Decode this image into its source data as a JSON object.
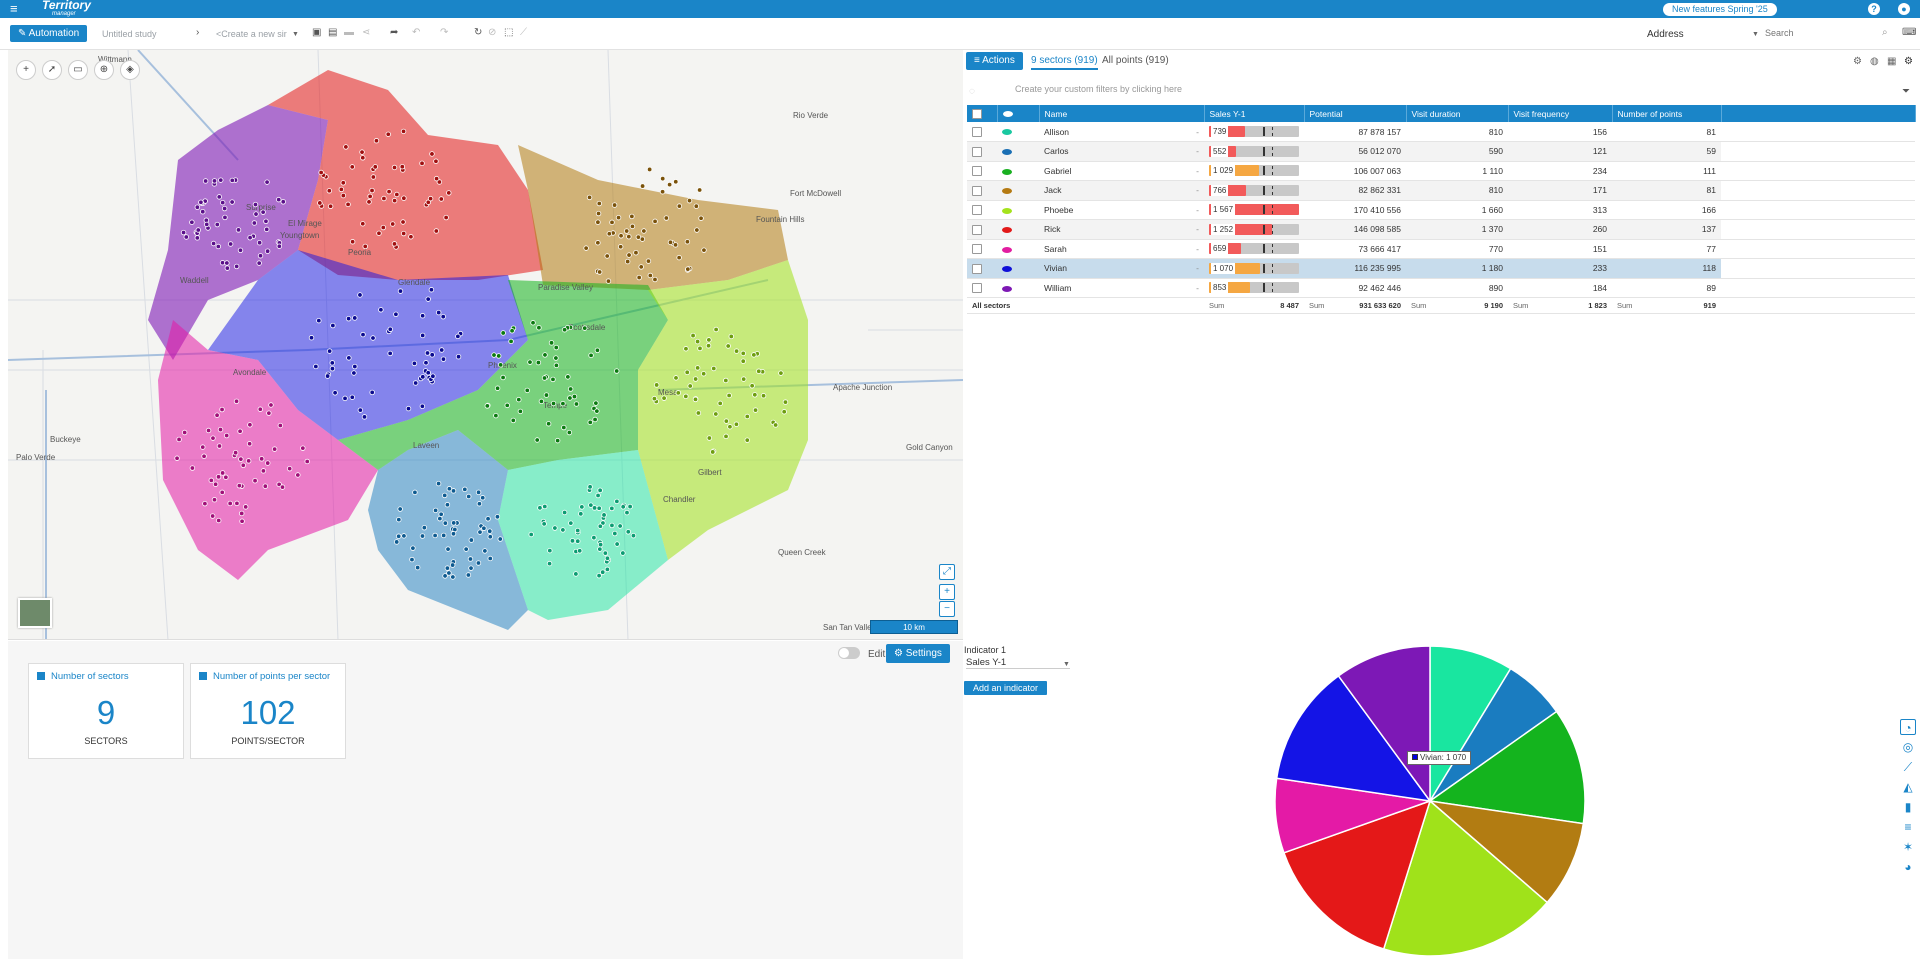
{
  "topbar": {
    "menu_icon": "hamburger-icon",
    "logo_line1": "Territory",
    "logo_line2": "manager",
    "new_features": "New features Spring '25",
    "help": "?",
    "user": "●"
  },
  "toolbar": {
    "automation": "Automation",
    "study": "Untitled study",
    "scenario": "<Create a new sir",
    "address_label": "Address",
    "search_placeholder": "Search"
  },
  "map": {
    "places": [
      "Wittmann",
      "Surprise",
      "El Mirage",
      "Youngtown",
      "Peoria",
      "Glendale",
      "Waddell",
      "Avondale",
      "Phoenix",
      "Buckeye",
      "Palo Verde",
      "Paradise Valley",
      "Scottsdale",
      "Tempe",
      "Mesa",
      "Gilbert",
      "Chandler",
      "Fort McDowell",
      "Fountain Hills",
      "Rio Verde",
      "Apache Junction",
      "Gold Canyon",
      "Queen Creek",
      "San Tan Valley",
      "Laveen"
    ],
    "scale": "10 km"
  },
  "panel": {
    "actions": "Actions",
    "tab_sectors": "9 sectors (919)",
    "tab_points": "All points (919)",
    "filter_hint": "Create your custom filters by clicking here"
  },
  "table": {
    "headers": [
      "Name",
      "Sales Y-1",
      "Potential",
      "Visit duration",
      "Visit frequency",
      "Number of points"
    ],
    "rows": [
      {
        "name": "Allison",
        "color": "#19c8a0",
        "sales": "739",
        "sales_fill": 0.4,
        "bar_color": "#f25a5a",
        "potential": "87 878 157",
        "duration": "810",
        "frequency": "156",
        "points": "81"
      },
      {
        "name": "Carlos",
        "color": "#1a6fb4",
        "sales": "552",
        "sales_fill": 0.3,
        "bar_color": "#f25a5a",
        "potential": "56 012 070",
        "duration": "590",
        "frequency": "121",
        "points": "59"
      },
      {
        "name": "Gabriel",
        "color": "#19b021",
        "sales": "1 029",
        "sales_fill": 0.55,
        "bar_color": "#f5a742",
        "potential": "106 007 063",
        "duration": "1 110",
        "frequency": "234",
        "points": "111"
      },
      {
        "name": "Jack",
        "color": "#b57a12",
        "sales": "766",
        "sales_fill": 0.41,
        "bar_color": "#f25a5a",
        "potential": "82 862 331",
        "duration": "810",
        "frequency": "171",
        "points": "81"
      },
      {
        "name": "Phoebe",
        "color": "#a4e21c",
        "sales": "1 567",
        "sales_fill": 1.0,
        "bar_color": "#f25a5a",
        "potential": "170 410 556",
        "duration": "1 660",
        "frequency": "313",
        "points": "166"
      },
      {
        "name": "Rick",
        "color": "#e21919",
        "sales": "1 252",
        "sales_fill": 0.7,
        "bar_color": "#f25a5a",
        "potential": "146 098 585",
        "duration": "1 370",
        "frequency": "260",
        "points": "137"
      },
      {
        "name": "Sarah",
        "color": "#e21da0",
        "sales": "659",
        "sales_fill": 0.36,
        "bar_color": "#f25a5a",
        "potential": "73 666 417",
        "duration": "770",
        "frequency": "151",
        "points": "77"
      },
      {
        "name": "Vivian",
        "color": "#1010d8",
        "sales": "1 070",
        "sales_fill": 0.57,
        "bar_color": "#f5a742",
        "potential": "116 235 995",
        "duration": "1 180",
        "frequency": "233",
        "points": "118"
      },
      {
        "name": "William",
        "color": "#7d19b4",
        "sales": "853",
        "sales_fill": 0.46,
        "bar_color": "#f5a742",
        "potential": "92 462 446",
        "duration": "890",
        "frequency": "184",
        "points": "89"
      }
    ],
    "dash": "-",
    "footer": {
      "label": "All sectors",
      "sum_label": "Sum",
      "sales": "8 487",
      "potential": "931 633 620",
      "duration": "9 190",
      "frequency": "1 823",
      "points": "919"
    }
  },
  "dashboard": {
    "edit": "Edit",
    "settings": "Settings",
    "kpi1_title": "Number of sectors",
    "kpi1_value": "9",
    "kpi1_unit": "SECTORS",
    "kpi2_title": "Number of points per sector",
    "kpi2_value": "102",
    "kpi2_unit": "POINTS/SECTOR"
  },
  "chart_panel": {
    "indicator_label": "Indicator 1",
    "indicator_value": "Sales Y-1",
    "add_indicator": "Add an indicator",
    "tooltip": "Vivian: 1 070"
  },
  "chart_data": {
    "type": "pie",
    "title": "",
    "categories": [
      "Allison",
      "Carlos",
      "Gabriel",
      "Jack",
      "Phoebe",
      "Rick",
      "Sarah",
      "Vivian",
      "William"
    ],
    "values": [
      739,
      552,
      1029,
      766,
      1567,
      1252,
      659,
      1070,
      853
    ],
    "colors": [
      "#19e6a0",
      "#1a7cc0",
      "#14b41e",
      "#b27c12",
      "#a0e21a",
      "#e41818",
      "#e41aa6",
      "#1414e6",
      "#7d18b6"
    ]
  }
}
